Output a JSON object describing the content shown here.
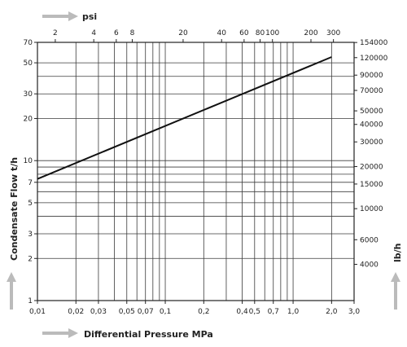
{
  "chart_data": {
    "type": "line",
    "scale": "log-log",
    "grid": true,
    "line_color": "#111111",
    "grid_color": "#3a3a3a",
    "arrow_color": "#bbbbbb",
    "xlabel": "Differential Pressure MPa",
    "ylabel": "Condensate Flow t/h",
    "top_axis_label": "psi",
    "right_axis_label": "lb/h",
    "xlim": [
      0.01,
      3.0
    ],
    "ylim": [
      1,
      70
    ],
    "bottom_ticks": [
      {
        "v": 0.01,
        "label": "0,01"
      },
      {
        "v": 0.02,
        "label": "0,02"
      },
      {
        "v": 0.03,
        "label": "0,03"
      },
      {
        "v": 0.05,
        "label": "0,05"
      },
      {
        "v": 0.07,
        "label": "0,07"
      },
      {
        "v": 0.1,
        "label": "0,1"
      },
      {
        "v": 0.2,
        "label": "0,2"
      },
      {
        "v": 0.4,
        "label": "0,4"
      },
      {
        "v": 0.5,
        "label": "0,5"
      },
      {
        "v": 0.7,
        "label": "0,7"
      },
      {
        "v": 1.0,
        "label": "1,0"
      },
      {
        "v": 2.0,
        "label": "2,0"
      },
      {
        "v": 3.0,
        "label": "3,0"
      }
    ],
    "bottom_minor_lines": [
      0.04,
      0.06,
      0.08,
      0.09,
      0.3,
      0.6,
      0.8,
      0.9
    ],
    "left_ticks": [
      {
        "v": 1,
        "label": "1"
      },
      {
        "v": 2,
        "label": "2"
      },
      {
        "v": 3,
        "label": "3"
      },
      {
        "v": 5,
        "label": "5"
      },
      {
        "v": 7,
        "label": "7"
      },
      {
        "v": 10,
        "label": "10"
      },
      {
        "v": 20,
        "label": "20"
      },
      {
        "v": 30,
        "label": "30"
      },
      {
        "v": 50,
        "label": "50"
      },
      {
        "v": 70,
        "label": "70"
      }
    ],
    "left_minor_lines": [
      4,
      6,
      8,
      9,
      40
    ],
    "top_ticks": [
      {
        "v": 2,
        "label": "2"
      },
      {
        "v": 4,
        "label": "4"
      },
      {
        "v": 6,
        "label": "6"
      },
      {
        "v": 8,
        "label": "8"
      },
      {
        "v": 20,
        "label": "20"
      },
      {
        "v": 40,
        "label": "40"
      },
      {
        "v": 60,
        "label": "60"
      },
      {
        "v": 80,
        "label": "80"
      },
      {
        "v": 100,
        "label": "100"
      },
      {
        "v": 200,
        "label": "200"
      },
      {
        "v": 300,
        "label": "300"
      }
    ],
    "right_ticks": [
      {
        "v": 4000,
        "label": "4000"
      },
      {
        "v": 6000,
        "label": "6000"
      },
      {
        "v": 10000,
        "label": "10000"
      },
      {
        "v": 15000,
        "label": "15000"
      },
      {
        "v": 20000,
        "label": "20000"
      },
      {
        "v": 30000,
        "label": "30000"
      },
      {
        "v": 40000,
        "label": "40000"
      },
      {
        "v": 50000,
        "label": "50000"
      },
      {
        "v": 70000,
        "label": "70000"
      },
      {
        "v": 90000,
        "label": "90000"
      },
      {
        "v": 120000,
        "label": "120000"
      },
      {
        "v": 154000,
        "label": "154000"
      }
    ],
    "series": [
      {
        "x": [
          0.01,
          2.0
        ],
        "y": [
          7.4,
          55
        ]
      }
    ]
  }
}
